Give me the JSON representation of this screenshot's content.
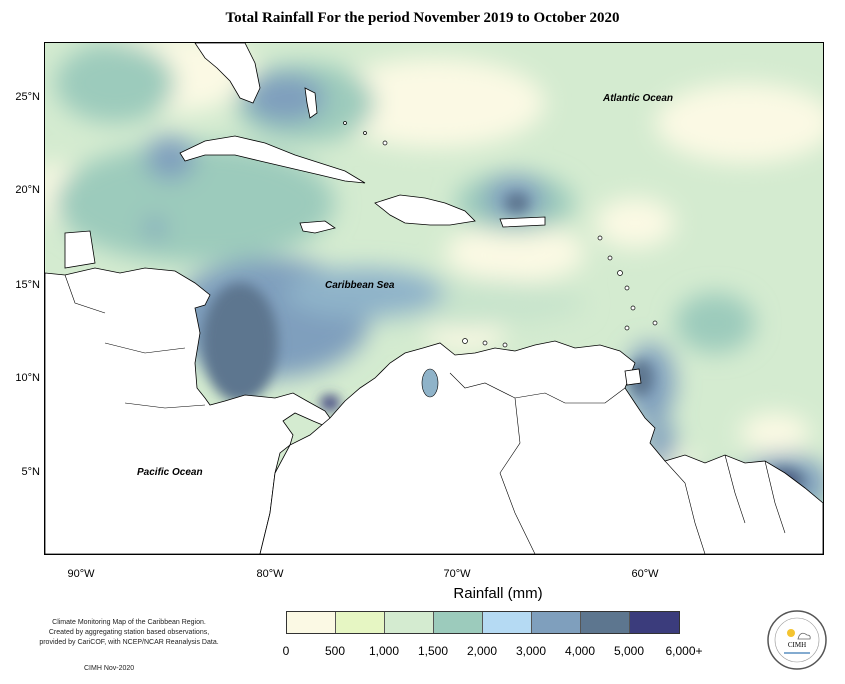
{
  "title": "Total Rainfall For the period November 2019 to October 2020",
  "map": {
    "latitude_ticks": [
      "25°N",
      "20°N",
      "15°N",
      "10°N",
      "5°N"
    ],
    "longitude_ticks": [
      "90°W",
      "80°W",
      "70°W",
      "60°W"
    ],
    "labels": {
      "atlantic": "Atlantic Ocean",
      "caribbean": "Caribbean Sea",
      "pacific": "Pacific Ocean"
    }
  },
  "legend": {
    "title": "Rainfall (mm)",
    "colors": [
      "#fbf9e4",
      "#e6f6c3",
      "#d4ebd0",
      "#9ccbbc",
      "#b5daf3",
      "#7f9fbd",
      "#5d768f",
      "#3b3c7c"
    ],
    "labels": [
      "0",
      "500",
      "1,000",
      "1,500",
      "2,000",
      "3,000",
      "4,000",
      "5,000",
      "6,000+"
    ]
  },
  "credits": {
    "lines": [
      "Climate Monitoring Map of the Caribbean Region.",
      "Created by aggregating station based observations,",
      "provided by CariCOF, with NCEP/NCAR Reanalysis Data."
    ],
    "date": "CIMH Nov-2020",
    "logo_text": "CIMH"
  }
}
